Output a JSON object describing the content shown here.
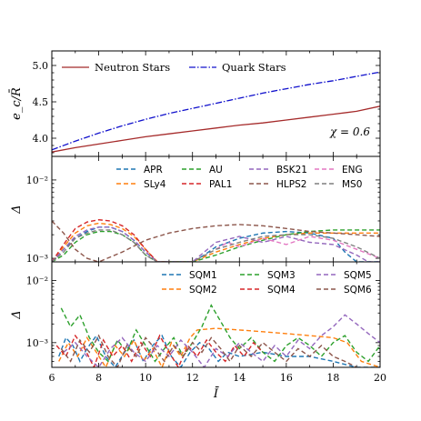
{
  "chart_data": [
    {
      "type": "line",
      "ylabel": "e_c/R̄",
      "xlim": [
        6,
        20
      ],
      "ylim": [
        3.75,
        5.2
      ],
      "yticks": [
        "4.0",
        "4.5",
        "5.0"
      ],
      "annotation": "χ = 0.6",
      "legend": "top",
      "series": [
        {
          "name": "Neutron Stars",
          "color": "#a52a2a",
          "dash": "solid",
          "x": [
            6,
            7,
            8,
            9,
            10,
            11,
            12,
            13,
            14,
            15,
            16,
            17,
            18,
            19,
            20
          ],
          "y": [
            3.81,
            3.87,
            3.92,
            3.97,
            4.02,
            4.06,
            4.1,
            4.14,
            4.18,
            4.21,
            4.25,
            4.29,
            4.33,
            4.37,
            4.44
          ]
        },
        {
          "name": "Quark Stars",
          "color": "#1010cc",
          "dash": "dashdot",
          "x": [
            6,
            7,
            8,
            9,
            10,
            11,
            12,
            13,
            14,
            15,
            16,
            17,
            18,
            19,
            20
          ],
          "y": [
            3.84,
            3.96,
            4.07,
            4.17,
            4.26,
            4.34,
            4.41,
            4.48,
            4.55,
            4.62,
            4.68,
            4.74,
            4.79,
            4.85,
            4.91
          ]
        }
      ]
    },
    {
      "type": "line",
      "ylabel": "Δ",
      "yscale": "log",
      "xlim": [
        6,
        20
      ],
      "ylim": [
        0.0009,
        0.02
      ],
      "ytick_labels": [
        "10⁻²",
        "10⁻³"
      ],
      "legend": "top-right",
      "series": [
        {
          "name": "APR",
          "color": "#1f77b4",
          "x": [
            6,
            6.5,
            7,
            7.5,
            8,
            8.5,
            9,
            9.5,
            10,
            10.5,
            11,
            11.5,
            12,
            12.5,
            13,
            14,
            15,
            16,
            17,
            18,
            18.5,
            19,
            20
          ],
          "y": [
            0.0009,
            0.0013,
            0.0018,
            0.0022,
            0.0025,
            0.0025,
            0.0022,
            0.0017,
            0.0012,
            0.0009,
            0.0009,
            0.0009,
            0.0009,
            0.0011,
            0.0014,
            0.0018,
            0.0021,
            0.0022,
            0.0021,
            0.0018,
            0.0012,
            0.0009,
            0.0009
          ]
        },
        {
          "name": "SLy4",
          "color": "#ff7f0e",
          "x": [
            6,
            6.5,
            7,
            7.5,
            8,
            8.5,
            9,
            9.5,
            10,
            10.5,
            11,
            12,
            13,
            14,
            15,
            16,
            17,
            18,
            19,
            20
          ],
          "y": [
            0.0009,
            0.0014,
            0.0021,
            0.0026,
            0.0028,
            0.0027,
            0.0024,
            0.0019,
            0.0013,
            0.0009,
            0.0009,
            0.0009,
            0.0012,
            0.0015,
            0.0018,
            0.002,
            0.0021,
            0.0021,
            0.0021,
            0.0021
          ]
        },
        {
          "name": "AU",
          "color": "#2ca02c",
          "x": [
            6,
            6.5,
            7,
            7.5,
            8,
            8.5,
            9,
            9.5,
            10,
            10.5,
            11,
            12,
            13,
            14,
            15,
            16,
            17,
            18,
            19,
            20
          ],
          "y": [
            0.0009,
            0.0011,
            0.0016,
            0.002,
            0.0022,
            0.0022,
            0.002,
            0.0016,
            0.0011,
            0.0009,
            0.0009,
            0.0009,
            0.0011,
            0.0014,
            0.0017,
            0.002,
            0.0022,
            0.0023,
            0.0023,
            0.0023
          ]
        },
        {
          "name": "PAL1",
          "color": "#d62728",
          "x": [
            6,
            6.5,
            7,
            7.5,
            8,
            8.5,
            9,
            9.5,
            10,
            10.5,
            11
          ],
          "y": [
            0.0009,
            0.0015,
            0.0024,
            0.0029,
            0.0031,
            0.003,
            0.0026,
            0.002,
            0.0013,
            0.0009,
            0.0009
          ]
        },
        {
          "name": "BSK21",
          "color": "#9467bd",
          "x": [
            6,
            6.5,
            7,
            7.5,
            8,
            8.5,
            9,
            9.5,
            10,
            10.5,
            11,
            12,
            12.5,
            13,
            14,
            15,
            16,
            17,
            18,
            19,
            19.5,
            20
          ],
          "y": [
            0.0009,
            0.0013,
            0.0019,
            0.0023,
            0.0025,
            0.0025,
            0.0022,
            0.0017,
            0.0012,
            0.0009,
            0.0009,
            0.0009,
            0.0012,
            0.0016,
            0.0019,
            0.0016,
            0.0019,
            0.0016,
            0.0015,
            0.0011,
            0.0009,
            0.0009
          ]
        },
        {
          "name": "HLPS2",
          "color": "#8c564b",
          "x": [
            6,
            6.5,
            7,
            7.5,
            8,
            9,
            10,
            11,
            12,
            13,
            14,
            15,
            16,
            17,
            18,
            19,
            20
          ],
          "y": [
            0.003,
            0.0021,
            0.0013,
            0.001,
            0.0009,
            0.0012,
            0.0017,
            0.0021,
            0.0024,
            0.0026,
            0.0027,
            0.0026,
            0.0024,
            0.0022,
            0.0021,
            0.002,
            0.0019
          ]
        },
        {
          "name": "ENG",
          "color": "#e377c2",
          "x": [
            13,
            13.5,
            14,
            15,
            16,
            17,
            18,
            19,
            20
          ],
          "y": [
            0.0013,
            0.0016,
            0.0014,
            0.0018,
            0.0015,
            0.0019,
            0.0017,
            0.0013,
            0.001
          ]
        },
        {
          "name": "MS0",
          "color": "#7f7f7f",
          "x": [
            6,
            6.5,
            7,
            7.5,
            8,
            8.5,
            9,
            9.5,
            10,
            10.5,
            11,
            12,
            13,
            14,
            15,
            16,
            17,
            18,
            19,
            20
          ],
          "y": [
            0.0009,
            0.0012,
            0.0018,
            0.0021,
            0.0023,
            0.0023,
            0.002,
            0.0016,
            0.0011,
            0.0009,
            0.0009,
            0.0009,
            0.0013,
            0.0016,
            0.0019,
            0.002,
            0.002,
            0.0018,
            0.0014,
            0.001
          ]
        }
      ]
    },
    {
      "type": "line",
      "ylabel": "Δ",
      "xlabel": "Ī",
      "yscale": "log",
      "xlim": [
        6,
        20
      ],
      "ylim": [
        0.0004,
        0.02
      ],
      "xticks": [
        "6",
        "8",
        "10",
        "12",
        "14",
        "16",
        "18",
        "20"
      ],
      "ytick_labels": [
        "10⁻²",
        "10⁻³"
      ],
      "legend": "top-right",
      "series": [
        {
          "name": "SQM1",
          "color": "#1f77b4",
          "x": [
            6.3,
            6.6,
            6.9,
            7.2,
            7.5,
            7.9,
            8.3,
            8.7,
            9.1,
            9.5,
            9.9,
            10.3,
            10.7,
            11.1,
            11.5,
            11.9,
            12.3,
            12.7,
            13.1,
            13.5,
            14,
            15,
            16,
            17,
            18,
            19,
            20
          ],
          "y": [
            0.0006,
            0.0012,
            0.0009,
            0.0005,
            0.0008,
            0.0013,
            0.0006,
            0.0004,
            0.0007,
            0.0011,
            0.0005,
            0.0009,
            0.0013,
            0.0006,
            0.0004,
            0.0007,
            0.001,
            0.0008,
            0.0005,
            0.0007,
            0.0006,
            0.0007,
            0.0006,
            0.0006,
            0.0005,
            0.0004,
            0.0004
          ]
        },
        {
          "name": "SQM2",
          "color": "#ff7f0e",
          "x": [
            6.3,
            6.7,
            7.1,
            7.5,
            7.9,
            8.3,
            8.7,
            9.1,
            9.5,
            9.9,
            10.3,
            10.7,
            11.1,
            11.5,
            11.9,
            12.2,
            13,
            14,
            15,
            16,
            17,
            18,
            18.6,
            19.2,
            20
          ],
          "y": [
            0.0005,
            0.001,
            0.0006,
            0.0012,
            0.0007,
            0.0004,
            0.0009,
            0.0006,
            0.0011,
            0.0005,
            0.0008,
            0.0004,
            0.001,
            0.0006,
            0.0012,
            0.0016,
            0.0017,
            0.0016,
            0.0015,
            0.0014,
            0.0013,
            0.0012,
            0.001,
            0.0005,
            0.0004
          ]
        },
        {
          "name": "SQM3",
          "color": "#2ca02c",
          "x": [
            6.4,
            6.8,
            7.2,
            7.6,
            8.0,
            8.4,
            8.8,
            9.2,
            9.6,
            10.0,
            10.4,
            10.8,
            11.2,
            11.6,
            12.0,
            12.4,
            12.8,
            13.2,
            13.6,
            14.0,
            14.5,
            15,
            15.5,
            16,
            16.5,
            17,
            17.5,
            18,
            18.5,
            19,
            19.5,
            20
          ],
          "y": [
            0.0036,
            0.0018,
            0.0028,
            0.0012,
            0.0007,
            0.0005,
            0.0011,
            0.0007,
            0.0016,
            0.0009,
            0.0005,
            0.0008,
            0.0012,
            0.0006,
            0.001,
            0.0018,
            0.004,
            0.0022,
            0.0012,
            0.0008,
            0.0012,
            0.0007,
            0.0005,
            0.0009,
            0.0012,
            0.0009,
            0.0006,
            0.001,
            0.0013,
            0.0007,
            0.0005,
            0.0009
          ]
        },
        {
          "name": "SQM4",
          "color": "#d62728",
          "x": [
            6.2,
            6.6,
            7.0,
            7.4,
            7.8,
            8.2,
            8.6,
            9.0,
            9.4,
            9.8,
            10.2,
            10.6,
            11.0,
            11.4,
            11.8,
            12.2,
            12.6,
            13.0,
            13.4,
            13.8,
            14.2,
            14.6,
            15.0
          ],
          "y": [
            0.0009,
            0.0006,
            0.0013,
            0.0008,
            0.0004,
            0.0011,
            0.0006,
            0.0009,
            0.0005,
            0.001,
            0.0006,
            0.0013,
            0.0007,
            0.0004,
            0.0009,
            0.0006,
            0.0011,
            0.0007,
            0.0005,
            0.0009,
            0.0006,
            0.001,
            0.0007
          ]
        },
        {
          "name": "SQM5",
          "color": "#9467bd",
          "x": [
            6.5,
            7.0,
            7.5,
            8.0,
            8.5,
            9.0,
            9.5,
            10.0,
            10.5,
            11.0,
            11.5,
            12.0,
            12.5,
            13.0,
            13.5,
            14.0,
            14.5,
            15.0,
            15.5,
            16.0,
            16.5,
            17.0,
            17.5,
            18.0,
            18.5,
            19.0,
            19.5,
            20.0
          ],
          "y": [
            0.0007,
            0.001,
            0.0006,
            0.0004,
            0.0008,
            0.0012,
            0.0007,
            0.0005,
            0.0009,
            0.0006,
            0.0011,
            0.0007,
            0.0004,
            0.0008,
            0.0006,
            0.001,
            0.0007,
            0.0005,
            0.0009,
            0.0006,
            0.0011,
            0.0008,
            0.0013,
            0.0018,
            0.0028,
            0.002,
            0.0014,
            0.001
          ]
        },
        {
          "name": "SQM6",
          "color": "#8c564b",
          "x": [
            6.4,
            6.8,
            7.2,
            7.6,
            8.0,
            8.4,
            8.8,
            9.2,
            9.6,
            10.0,
            10.4,
            10.8,
            11.2,
            11.6,
            12.0,
            12.4,
            12.8,
            13.2,
            13.6,
            14.0,
            14.5,
            15.0,
            15.5,
            16.0,
            16.5,
            17.0,
            17.5,
            18.0,
            18.5,
            19.0
          ],
          "y": [
            0.0008,
            0.0005,
            0.0011,
            0.0007,
            0.0013,
            0.0006,
            0.0004,
            0.0009,
            0.0006,
            0.0012,
            0.0008,
            0.0005,
            0.0009,
            0.0006,
            0.001,
            0.0007,
            0.0012,
            0.0008,
            0.0005,
            0.0009,
            0.0006,
            0.001,
            0.0007,
            0.0005,
            0.0008,
            0.0006,
            0.0009,
            0.0006,
            0.0005,
            0.0004
          ]
        }
      ]
    }
  ]
}
